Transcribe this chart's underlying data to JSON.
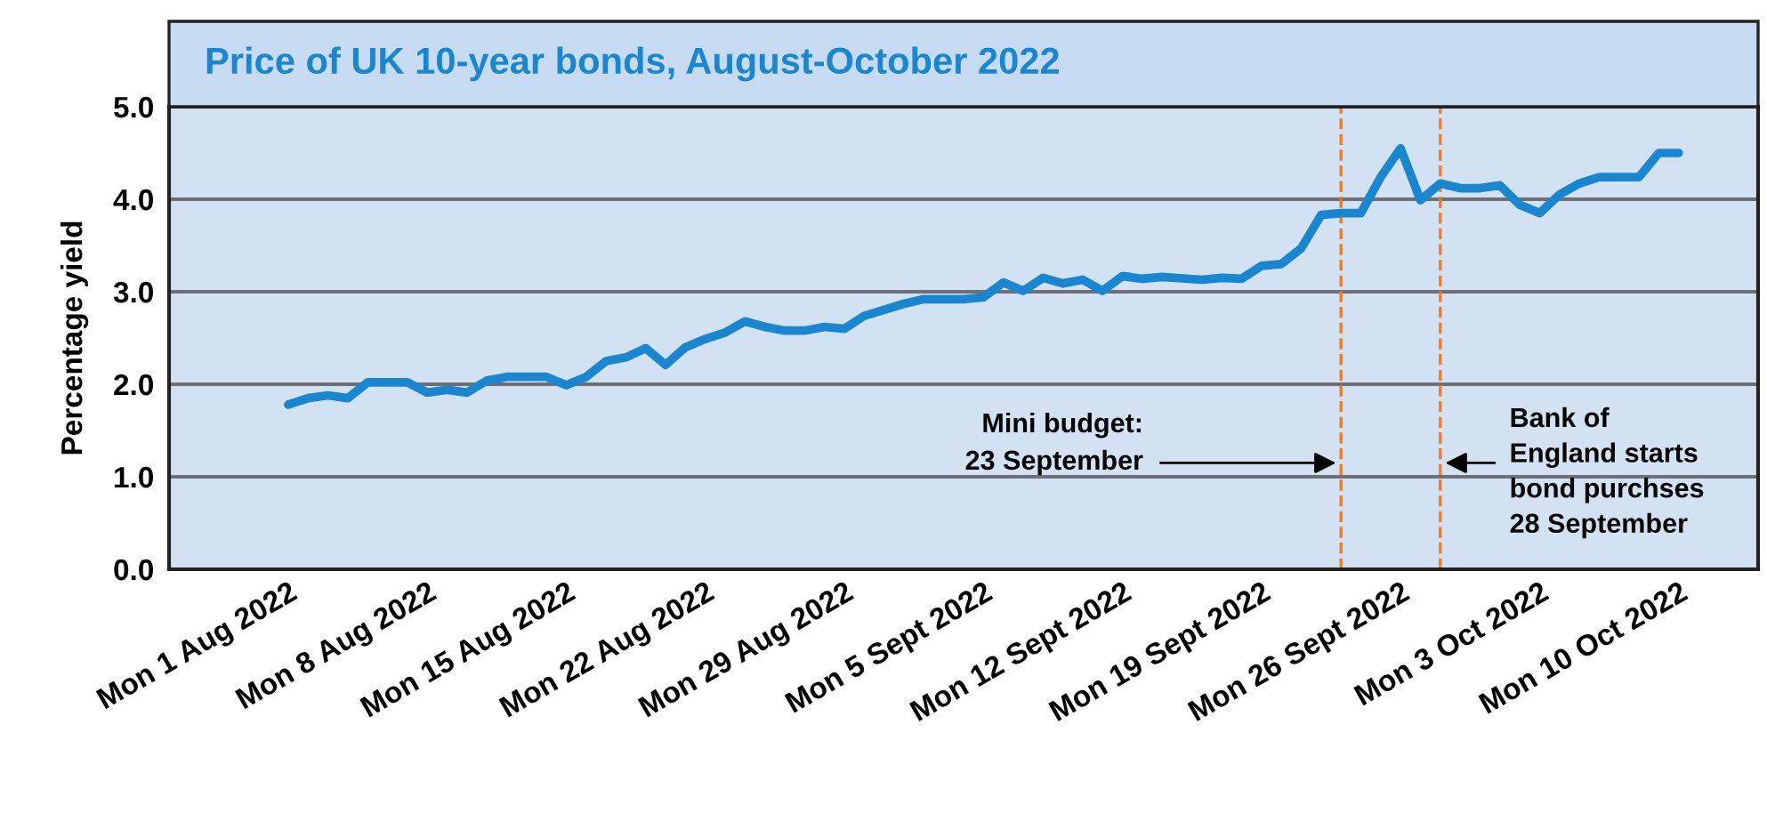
{
  "chart_data": {
    "type": "line",
    "title": "Price of UK 10-year bonds, August-October 2022",
    "ylabel": "Percentage yield",
    "x": [
      "2022-08-01",
      "2022-08-02",
      "2022-08-03",
      "2022-08-04",
      "2022-08-05",
      "2022-08-07",
      "2022-08-08",
      "2022-08-09",
      "2022-08-10",
      "2022-08-11",
      "2022-08-12",
      "2022-08-14",
      "2022-08-15",
      "2022-08-16",
      "2022-08-17",
      "2022-08-18",
      "2022-08-19",
      "2022-08-20",
      "2022-08-21",
      "2022-08-22",
      "2022-08-23",
      "2022-08-24",
      "2022-08-25",
      "2022-08-26",
      "2022-08-27",
      "2022-08-28",
      "2022-08-29",
      "2022-08-30",
      "2022-09-01",
      "2022-09-02",
      "2022-09-04",
      "2022-09-05",
      "2022-09-06",
      "2022-09-07",
      "2022-09-08",
      "2022-09-09",
      "2022-09-10",
      "2022-09-11",
      "2022-09-12",
      "2022-09-13",
      "2022-09-14",
      "2022-09-16",
      "2022-09-17",
      "2022-09-18",
      "2022-09-19",
      "2022-09-20",
      "2022-09-21",
      "2022-09-22",
      "2022-09-23",
      "2022-09-24",
      "2022-09-25",
      "2022-09-26",
      "2022-09-27",
      "2022-09-28",
      "2022-09-29",
      "2022-09-30",
      "2022-10-01",
      "2022-10-02",
      "2022-10-03",
      "2022-10-04",
      "2022-10-05",
      "2022-10-06",
      "2022-10-08",
      "2022-10-09",
      "2022-10-10"
    ],
    "series": [
      {
        "color": "#1a86cf",
        "values": [
          1.78,
          1.85,
          1.88,
          1.85,
          2.02,
          2.02,
          1.91,
          1.94,
          1.91,
          2.04,
          2.08,
          2.08,
          1.99,
          2.08,
          2.25,
          2.29,
          2.39,
          2.21,
          2.4,
          2.49,
          2.56,
          2.68,
          2.62,
          2.58,
          2.58,
          2.62,
          2.6,
          2.74,
          2.87,
          2.92,
          2.92,
          2.94,
          3.1,
          3.01,
          3.15,
          3.09,
          3.13,
          3.01,
          3.17,
          3.14,
          3.16,
          3.13,
          3.15,
          3.14,
          3.28,
          3.3,
          3.47,
          3.83,
          3.85,
          3.85,
          4.24,
          4.55,
          3.99,
          4.17,
          4.12,
          4.12,
          4.15,
          3.94,
          3.85,
          4.05,
          4.17,
          4.24,
          4.24,
          4.5,
          4.5
        ]
      }
    ],
    "xlim": [
      "2022-07-26",
      "2022-10-14"
    ],
    "xticks": [
      {
        "value": "2022-08-01",
        "label": "Mon 1 Aug 2022"
      },
      {
        "value": "2022-08-08",
        "label": "Mon 8 Aug 2022"
      },
      {
        "value": "2022-08-15",
        "label": "Mon 15 Aug 2022"
      },
      {
        "value": "2022-08-22",
        "label": "Mon 22 Aug 2022"
      },
      {
        "value": "2022-08-29",
        "label": "Mon 29 Aug 2022"
      },
      {
        "value": "2022-09-05",
        "label": "Mon 5 Sept 2022"
      },
      {
        "value": "2022-09-12",
        "label": "Mon 12 Sept 2022"
      },
      {
        "value": "2022-09-19",
        "label": "Mon 19 Sept 2022"
      },
      {
        "value": "2022-09-26",
        "label": "Mon 26 Sept 2022"
      },
      {
        "value": "2022-10-03",
        "label": "Mon 3 Oct 2022"
      },
      {
        "value": "2022-10-10",
        "label": "Mon 10 Oct 2022"
      }
    ],
    "ylim": [
      0,
      5
    ],
    "yticks": [
      {
        "value": 0,
        "label": "0.0"
      },
      {
        "value": 1,
        "label": "1.0"
      },
      {
        "value": 2,
        "label": "2.0"
      },
      {
        "value": 3,
        "label": "3.0"
      },
      {
        "value": 4,
        "label": "4.0"
      },
      {
        "value": 5,
        "label": "5.0"
      }
    ],
    "ref_lines": [
      {
        "axis": "x",
        "value": "2022-09-23",
        "label": "Mini budget:\n23 September",
        "color": "#f07a28",
        "line_style": "dashed"
      },
      {
        "axis": "x",
        "value": "2022-09-28",
        "label": "Bank of\nEngland starts\nbond purchses\n28 September",
        "color": "#f07a28",
        "line_style": "dashed"
      }
    ],
    "grid": "y",
    "legend": false,
    "marker": "none",
    "line_style": "solid"
  }
}
